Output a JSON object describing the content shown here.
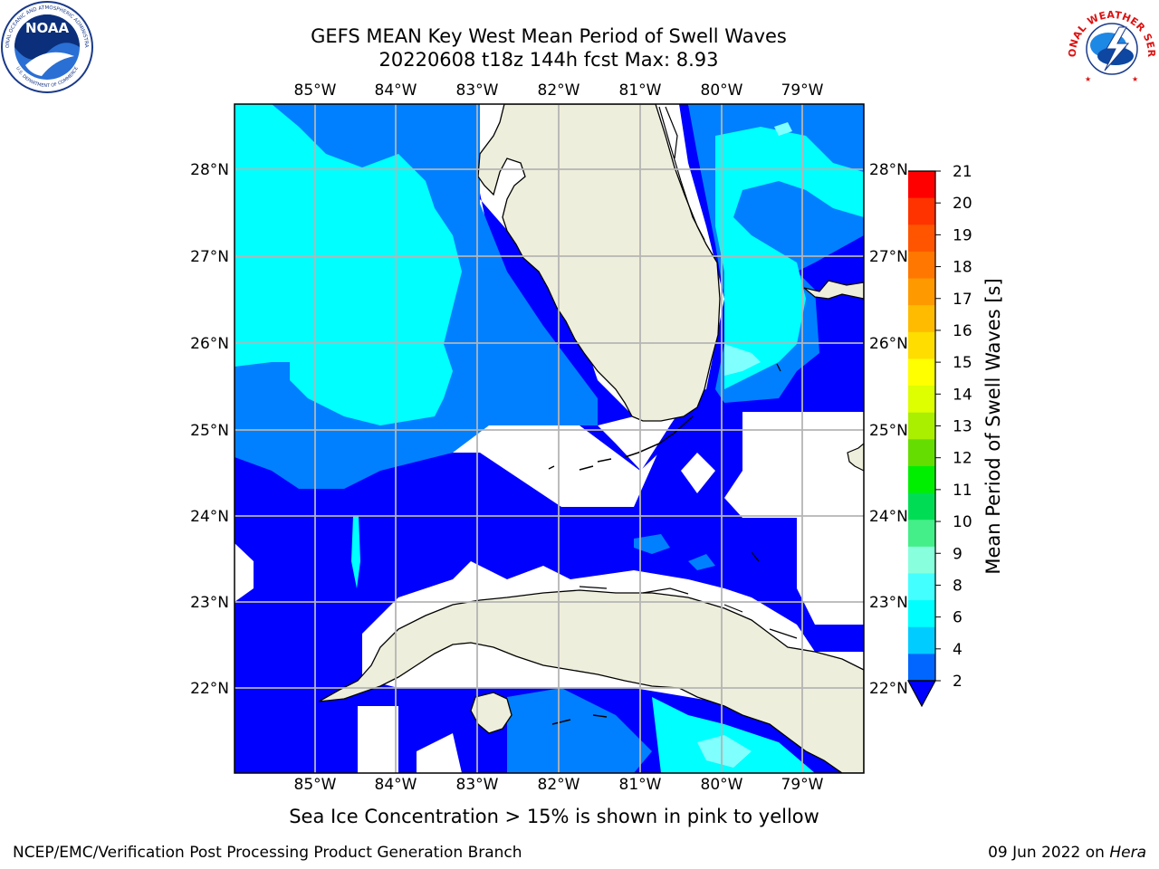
{
  "title": {
    "line1": "GEFS MEAN Key West Mean Period of Swell Waves",
    "line2": "20220608 t18z 144h fcst   Max: 8.93"
  },
  "map": {
    "lon_labels": [
      "85°W",
      "84°W",
      "83°W",
      "82°W",
      "81°W",
      "80°W",
      "79°W"
    ],
    "lat_labels": [
      "28°N",
      "27°N",
      "26°N",
      "25°N",
      "24°N",
      "23°N",
      "22°N"
    ],
    "colors": {
      "land": "#eeeedc",
      "no_data": "#ffffff",
      "band_2_4": "#0000ff",
      "band_4_6": "#0080ff",
      "band_6_8": "#00ffff",
      "band_8_9": "#80ffff",
      "coast": "#000000",
      "grid": "#b4b4b4"
    }
  },
  "colorbar": {
    "label": "Mean Period of Swell Waves [s]",
    "ticks": [
      "21",
      "20",
      "19",
      "18",
      "17",
      "16",
      "15",
      "14",
      "13",
      "12",
      "11",
      "10",
      "9",
      "8",
      "6",
      "4",
      "2"
    ],
    "colors": [
      "#ff0000",
      "#ff3300",
      "#ff5500",
      "#ff7700",
      "#ff9900",
      "#ffbb00",
      "#ffdd00",
      "#ffff00",
      "#ddff00",
      "#aaee00",
      "#66dd00",
      "#00ee00",
      "#00dd55",
      "#44ee88",
      "#88ffdd",
      "#44ffff",
      "#00ffff",
      "#00ccff",
      "#0066ff"
    ],
    "under_color": "#0000ff"
  },
  "logos": {
    "noaa": "NOAA",
    "nws": "NATIONAL WEATHER SERVICE"
  },
  "bottom_note": "Sea Ice Concentration > 15% is shown in pink to yellow",
  "footer": {
    "left": "NCEP/EMC/Verification Post Processing Product Generation Branch",
    "date": "09 Jun 2022 on ",
    "system": "Hera"
  }
}
